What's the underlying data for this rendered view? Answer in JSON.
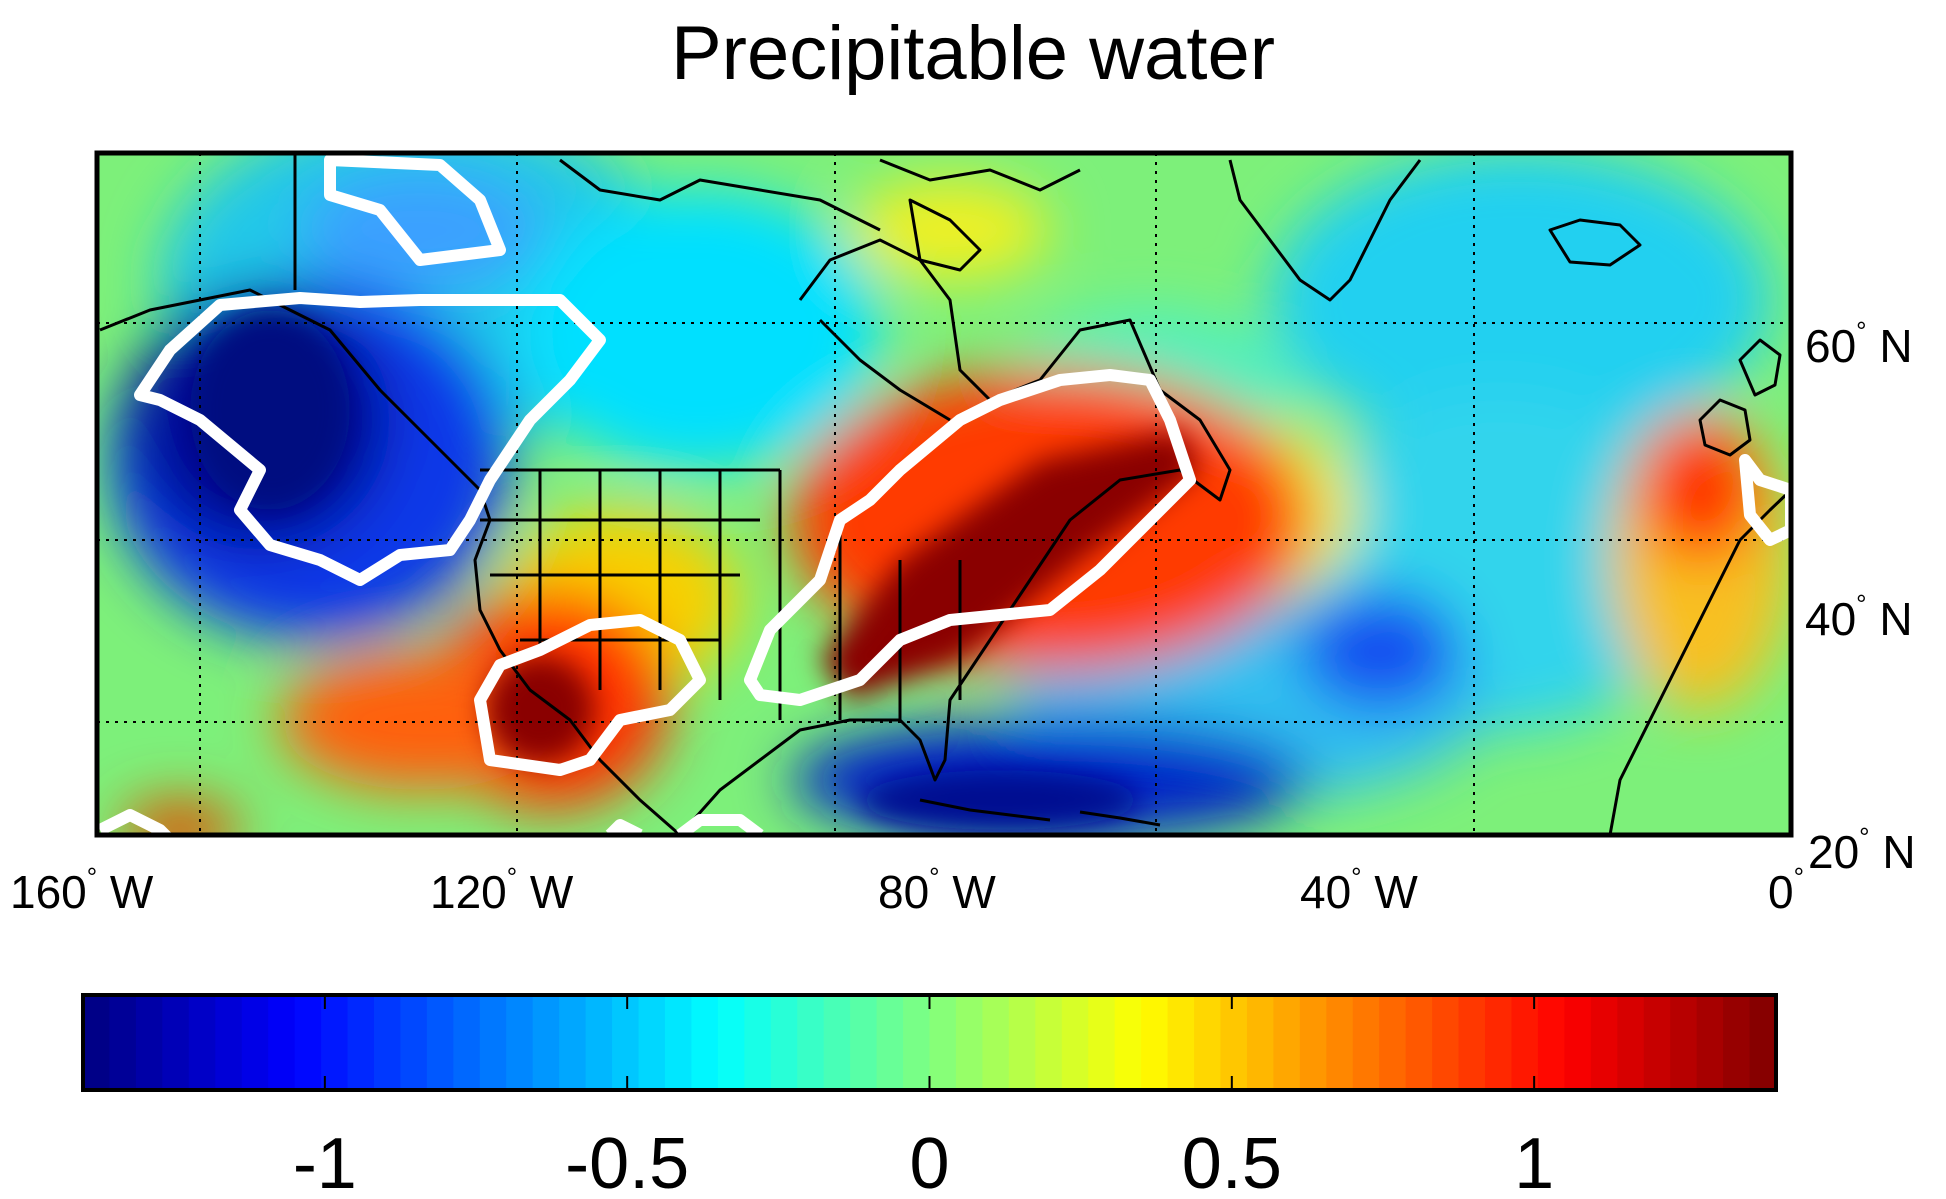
{
  "title": "Precipitable water",
  "map": {
    "lon_range": [
      -160,
      0
    ],
    "lat_range": [
      20,
      80
    ],
    "lon_gridlines": [
      -150,
      -120,
      -90,
      -60,
      -30
    ],
    "lat_gridlines": [
      30,
      45,
      60
    ],
    "lon_ticks": [
      {
        "value": -160,
        "num": "160",
        "deg": "°",
        "hem": " W"
      },
      {
        "value": -120,
        "num": "120",
        "deg": "°",
        "hem": " W"
      },
      {
        "value": -80,
        "num": "80",
        "deg": "°",
        "hem": " W"
      },
      {
        "value": -40,
        "num": "40",
        "deg": "°",
        "hem": " W"
      },
      {
        "value": 0,
        "num": "0",
        "deg": "°",
        "hem": ""
      }
    ],
    "lat_ticks": [
      {
        "value": 20,
        "num": "20",
        "deg": "°",
        "hem": " N"
      },
      {
        "value": 40,
        "num": "40",
        "deg": "°",
        "hem": " N"
      },
      {
        "value": 60,
        "num": "60",
        "deg": "°",
        "hem": " N"
      }
    ],
    "field_anomalies": [
      {
        "lon": -136,
        "lat": 53,
        "value": -1.35
      },
      {
        "lon": -128,
        "lat": 69,
        "value": -0.6
      },
      {
        "lon": -115,
        "lat": 40,
        "value": 1.3
      },
      {
        "lon": -80,
        "lat": 42,
        "value": 1.35
      },
      {
        "lon": -75,
        "lat": 22,
        "value": -1.3
      },
      {
        "lon": -38,
        "lat": 37,
        "value": -0.9
      },
      {
        "lon": -5,
        "lat": 47,
        "value": 1.0
      }
    ],
    "significance_contour_color": "#ffffff",
    "coastline_color": "#000000"
  },
  "colorbar": {
    "range": [
      -1.4,
      1.4
    ],
    "ticks": [
      {
        "value": -1,
        "label": "-1"
      },
      {
        "value": -0.5,
        "label": "-0.5"
      },
      {
        "value": 0,
        "label": "0"
      },
      {
        "value": 0.5,
        "label": "0.5"
      },
      {
        "value": 1,
        "label": "1"
      }
    ],
    "colormap": "jet"
  }
}
